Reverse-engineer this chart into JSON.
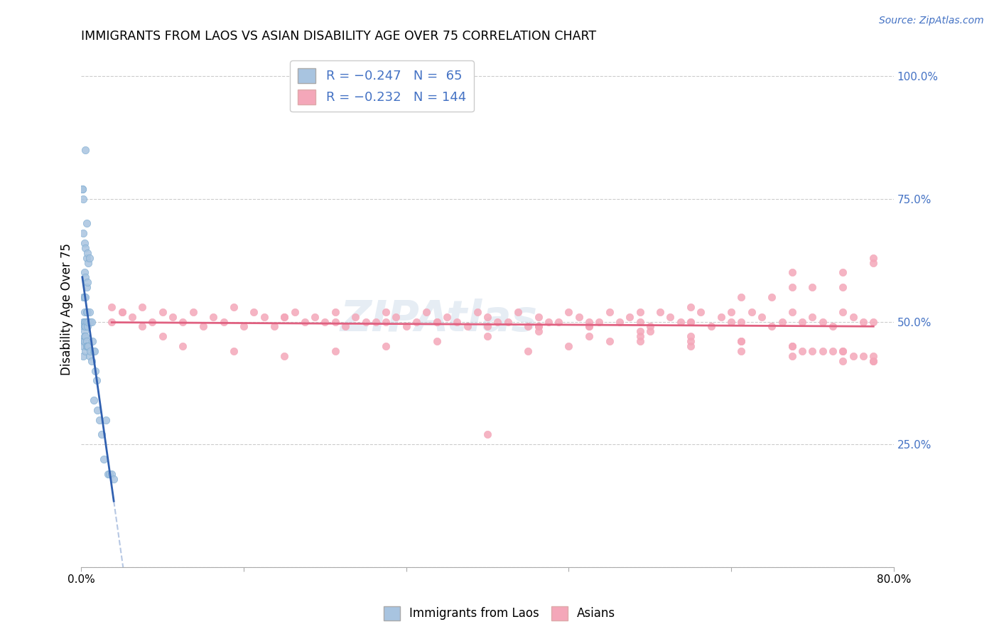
{
  "title": "IMMIGRANTS FROM LAOS VS ASIAN DISABILITY AGE OVER 75 CORRELATION CHART",
  "source": "Source: ZipAtlas.com",
  "ylabel": "Disability Age Over 75",
  "right_yticks": [
    "100.0%",
    "75.0%",
    "50.0%",
    "25.0%"
  ],
  "right_ytick_vals": [
    1.0,
    0.75,
    0.5,
    0.25
  ],
  "laos_color": "#a8c4e0",
  "asians_color": "#f4a7b9",
  "laos_line_color": "#3060b0",
  "asians_line_color": "#e06080",
  "right_axis_color": "#4472c4",
  "watermark": "ZIPAtlas",
  "laos_scatter_x": [
    0.001,
    0.001,
    0.001,
    0.002,
    0.002,
    0.002,
    0.002,
    0.002,
    0.002,
    0.002,
    0.002,
    0.003,
    0.003,
    0.003,
    0.003,
    0.003,
    0.003,
    0.003,
    0.003,
    0.003,
    0.004,
    0.004,
    0.004,
    0.004,
    0.004,
    0.004,
    0.004,
    0.004,
    0.005,
    0.005,
    0.005,
    0.005,
    0.005,
    0.005,
    0.005,
    0.006,
    0.006,
    0.006,
    0.006,
    0.006,
    0.007,
    0.007,
    0.007,
    0.008,
    0.008,
    0.008,
    0.009,
    0.009,
    0.01,
    0.01,
    0.011,
    0.012,
    0.012,
    0.013,
    0.014,
    0.015,
    0.016,
    0.018,
    0.02,
    0.022,
    0.024,
    0.026,
    0.028,
    0.03,
    0.032
  ],
  "laos_scatter_y": [
    0.77,
    0.77,
    0.46,
    0.75,
    0.68,
    0.55,
    0.5,
    0.49,
    0.46,
    0.45,
    0.43,
    0.66,
    0.6,
    0.55,
    0.52,
    0.5,
    0.49,
    0.48,
    0.47,
    0.46,
    0.85,
    0.65,
    0.59,
    0.55,
    0.5,
    0.49,
    0.47,
    0.44,
    0.7,
    0.63,
    0.57,
    0.52,
    0.5,
    0.46,
    0.45,
    0.64,
    0.58,
    0.52,
    0.49,
    0.45,
    0.62,
    0.5,
    0.45,
    0.63,
    0.52,
    0.43,
    0.5,
    0.44,
    0.5,
    0.42,
    0.46,
    0.44,
    0.34,
    0.44,
    0.4,
    0.38,
    0.32,
    0.3,
    0.27,
    0.22,
    0.3,
    0.19,
    0.19,
    0.19,
    0.18
  ],
  "asians_scatter_x": [
    0.03,
    0.04,
    0.05,
    0.06,
    0.07,
    0.08,
    0.09,
    0.1,
    0.11,
    0.12,
    0.13,
    0.14,
    0.15,
    0.16,
    0.17,
    0.18,
    0.19,
    0.2,
    0.21,
    0.22,
    0.23,
    0.24,
    0.25,
    0.26,
    0.27,
    0.28,
    0.29,
    0.3,
    0.31,
    0.32,
    0.33,
    0.34,
    0.35,
    0.36,
    0.37,
    0.38,
    0.39,
    0.4,
    0.41,
    0.42,
    0.43,
    0.44,
    0.45,
    0.46,
    0.47,
    0.48,
    0.49,
    0.5,
    0.51,
    0.52,
    0.53,
    0.54,
    0.55,
    0.56,
    0.57,
    0.58,
    0.59,
    0.6,
    0.61,
    0.62,
    0.63,
    0.64,
    0.65,
    0.66,
    0.67,
    0.68,
    0.69,
    0.7,
    0.71,
    0.72,
    0.73,
    0.74,
    0.75,
    0.76,
    0.77,
    0.78,
    0.55,
    0.6,
    0.65,
    0.7,
    0.71,
    0.72,
    0.73,
    0.74,
    0.75,
    0.76,
    0.77,
    0.78,
    0.45,
    0.5,
    0.55,
    0.6,
    0.65,
    0.7,
    0.75,
    0.78,
    0.2,
    0.25,
    0.3,
    0.35,
    0.4,
    0.45,
    0.5,
    0.55,
    0.6,
    0.65,
    0.7,
    0.75,
    0.78,
    0.78,
    0.75,
    0.7,
    0.65,
    0.6,
    0.55,
    0.5,
    0.45,
    0.4,
    0.35,
    0.3,
    0.25,
    0.2,
    0.15,
    0.1,
    0.08,
    0.06,
    0.04,
    0.03,
    0.7,
    0.75,
    0.78,
    0.72,
    0.68,
    0.64,
    0.6,
    0.56,
    0.52,
    0.48,
    0.44,
    0.4
  ],
  "asians_scatter_y": [
    0.53,
    0.52,
    0.51,
    0.53,
    0.5,
    0.52,
    0.51,
    0.5,
    0.52,
    0.49,
    0.51,
    0.5,
    0.53,
    0.49,
    0.52,
    0.51,
    0.49,
    0.51,
    0.52,
    0.5,
    0.51,
    0.5,
    0.52,
    0.49,
    0.51,
    0.5,
    0.5,
    0.52,
    0.51,
    0.49,
    0.5,
    0.52,
    0.5,
    0.51,
    0.5,
    0.49,
    0.52,
    0.51,
    0.5,
    0.5,
    0.52,
    0.49,
    0.51,
    0.5,
    0.5,
    0.52,
    0.51,
    0.49,
    0.5,
    0.52,
    0.5,
    0.51,
    0.5,
    0.49,
    0.52,
    0.51,
    0.5,
    0.5,
    0.52,
    0.49,
    0.51,
    0.5,
    0.5,
    0.52,
    0.51,
    0.49,
    0.5,
    0.52,
    0.5,
    0.51,
    0.5,
    0.49,
    0.52,
    0.51,
    0.5,
    0.5,
    0.47,
    0.46,
    0.46,
    0.45,
    0.44,
    0.44,
    0.44,
    0.44,
    0.44,
    0.43,
    0.43,
    0.42,
    0.48,
    0.47,
    0.46,
    0.45,
    0.44,
    0.43,
    0.42,
    0.42,
    0.51,
    0.5,
    0.5,
    0.5,
    0.49,
    0.49,
    0.49,
    0.48,
    0.47,
    0.46,
    0.45,
    0.44,
    0.43,
    0.63,
    0.6,
    0.57,
    0.55,
    0.53,
    0.52,
    0.5,
    0.49,
    0.47,
    0.46,
    0.45,
    0.44,
    0.43,
    0.44,
    0.45,
    0.47,
    0.49,
    0.52,
    0.5,
    0.6,
    0.57,
    0.62,
    0.57,
    0.55,
    0.52,
    0.5,
    0.48,
    0.46,
    0.45,
    0.44,
    0.27
  ]
}
